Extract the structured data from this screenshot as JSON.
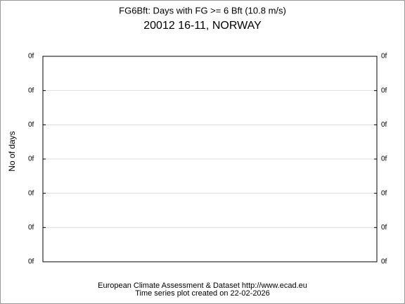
{
  "chart_data": {
    "type": "line",
    "title": "FG6Bft: Days with FG >= 6 Bft (10.8 m/s)",
    "subtitle": "20012 16-11, NORWAY",
    "y_label": "No of days",
    "ylim": [
      0,
      6
    ],
    "yticks": [
      {
        "value": 0,
        "label": "0f"
      },
      {
        "value": 1,
        "label": "0f"
      },
      {
        "value": 2,
        "label": "0f"
      },
      {
        "value": 3,
        "label": "0f"
      },
      {
        "value": 4,
        "label": "0f"
      },
      {
        "value": 5,
        "label": "0f"
      },
      {
        "value": 6,
        "label": "0f"
      }
    ],
    "grid": true,
    "footer": [
      "European Climate Assessment & Dataset  http://www.ecad.eu",
      "Time series plot created on 22-02-2026"
    ]
  }
}
